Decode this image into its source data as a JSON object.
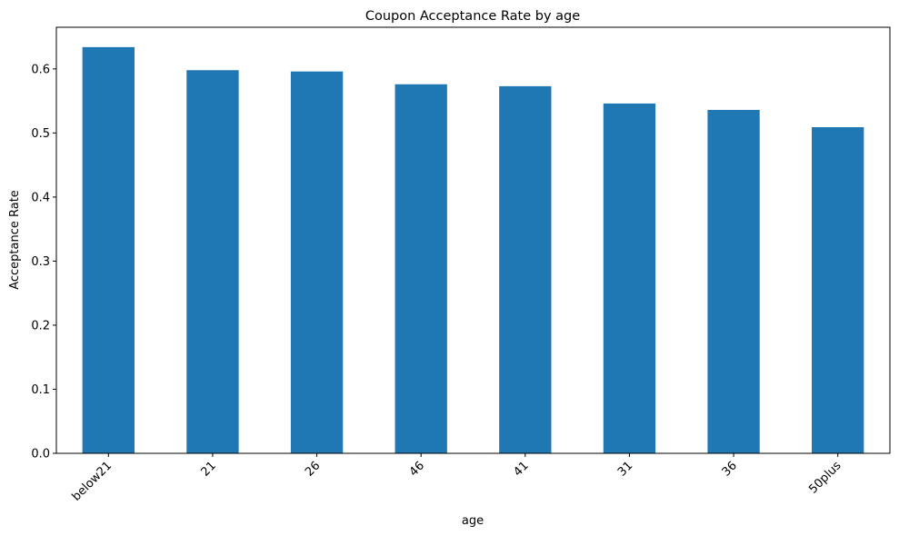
{
  "chart_data": {
    "type": "bar",
    "title": "Coupon Acceptance Rate by age",
    "xlabel": "age",
    "ylabel": "Acceptance Rate",
    "categories": [
      "below21",
      "21",
      "26",
      "46",
      "41",
      "31",
      "36",
      "50plus"
    ],
    "values": [
      0.634,
      0.598,
      0.596,
      0.576,
      0.573,
      0.546,
      0.536,
      0.509
    ],
    "ylim": [
      0,
      0.665
    ],
    "yticks": [
      0.0,
      0.1,
      0.2,
      0.3,
      0.4,
      0.5,
      0.6
    ],
    "ytick_labels": [
      "0.0",
      "0.1",
      "0.2",
      "0.3",
      "0.4",
      "0.5",
      "0.6"
    ],
    "grid": false,
    "legend": "none",
    "bar_color": "#1f77b4"
  }
}
